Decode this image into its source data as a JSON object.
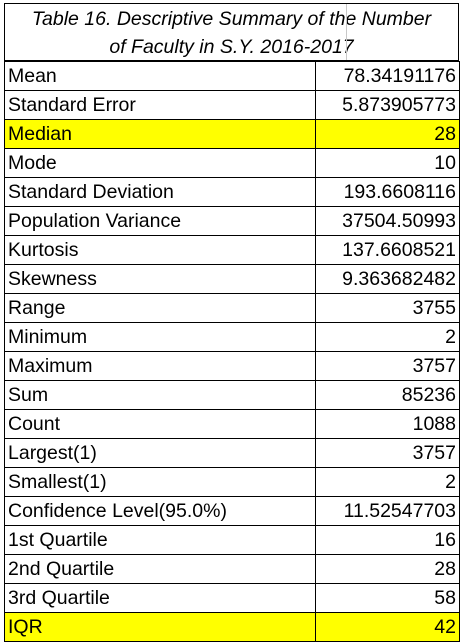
{
  "table": {
    "title_line1": "Table 16. Descriptive Summary of the Number",
    "title_line2": "of Faculty in S.Y. 2016-2017",
    "highlight_color": "#ffff00",
    "rows": [
      {
        "label": "Mean",
        "value": "78.34191176",
        "highlight": false
      },
      {
        "label": "Standard Error",
        "value": "5.873905773",
        "highlight": false
      },
      {
        "label": "Median",
        "value": "28",
        "highlight": true
      },
      {
        "label": "Mode",
        "value": "10",
        "highlight": false
      },
      {
        "label": "Standard Deviation",
        "value": "193.6608116",
        "highlight": false
      },
      {
        "label": "Population Variance",
        "value": "37504.50993",
        "highlight": false
      },
      {
        "label": "Kurtosis",
        "value": "137.6608521",
        "highlight": false
      },
      {
        "label": "Skewness",
        "value": "9.363682482",
        "highlight": false
      },
      {
        "label": "Range",
        "value": "3755",
        "highlight": false
      },
      {
        "label": "Minimum",
        "value": "2",
        "highlight": false
      },
      {
        "label": "Maximum",
        "value": "3757",
        "highlight": false
      },
      {
        "label": "Sum",
        "value": "85236",
        "highlight": false
      },
      {
        "label": "Count",
        "value": "1088",
        "highlight": false
      },
      {
        "label": "Largest(1)",
        "value": "3757",
        "highlight": false
      },
      {
        "label": "Smallest(1)",
        "value": "2",
        "highlight": false
      },
      {
        "label": "Confidence Level(95.0%)",
        "value": "11.52547703",
        "highlight": false
      },
      {
        "label": "1st Quartile",
        "value": "16",
        "highlight": false
      },
      {
        "label": "2nd Quartile",
        "value": "28",
        "highlight": false
      },
      {
        "label": "3rd Quartile",
        "value": "58",
        "highlight": false
      },
      {
        "label": "IQR",
        "value": "42",
        "highlight": true
      }
    ]
  }
}
